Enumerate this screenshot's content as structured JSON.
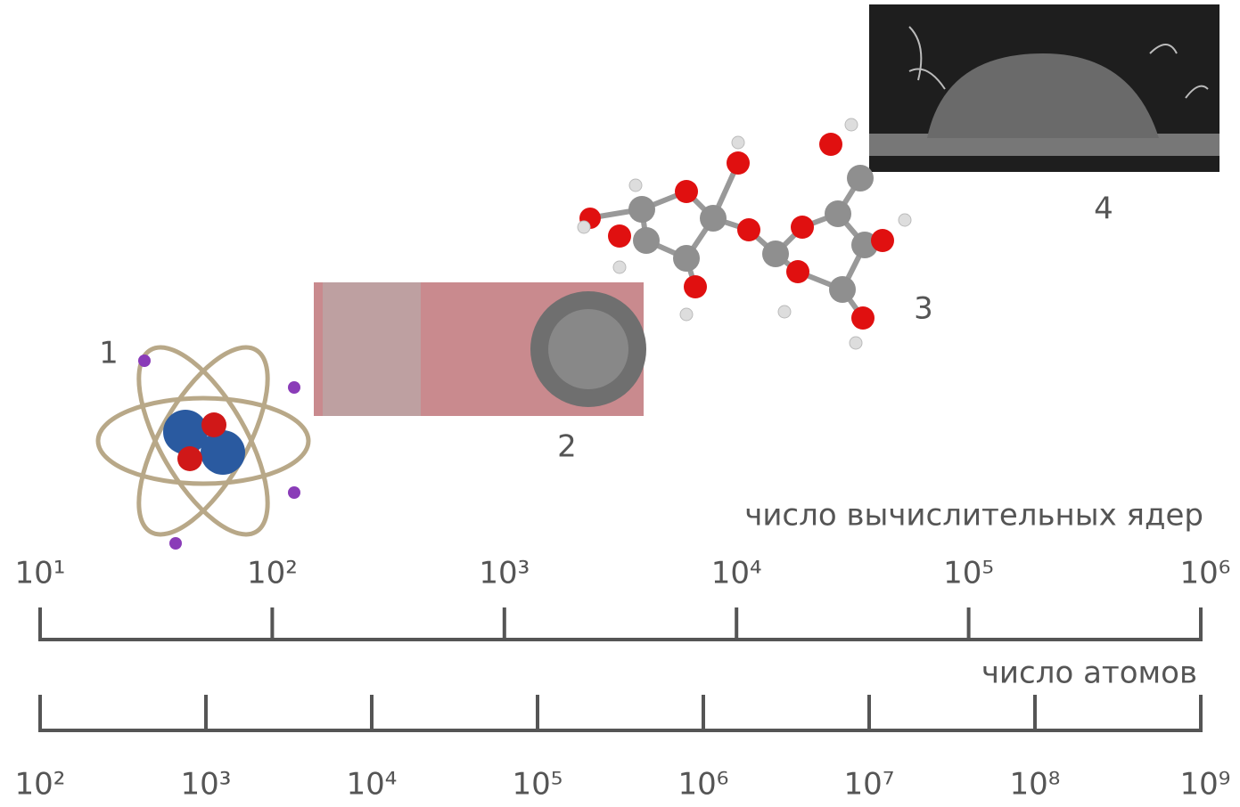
{
  "illustrations": [
    {
      "label": "1"
    },
    {
      "label": "2"
    },
    {
      "label": "3"
    },
    {
      "label": "4"
    }
  ],
  "cores_axis": {
    "title": "число вычислительных ядер",
    "ticks": [
      "10¹",
      "10²",
      "10³",
      "10⁴",
      "10⁵",
      "10⁶"
    ]
  },
  "atoms_axis": {
    "title": "число атомов",
    "ticks": [
      "10²",
      "10³",
      "10⁴",
      "10⁵",
      "10⁶",
      "10⁷",
      "10⁸",
      "10⁹"
    ]
  }
}
